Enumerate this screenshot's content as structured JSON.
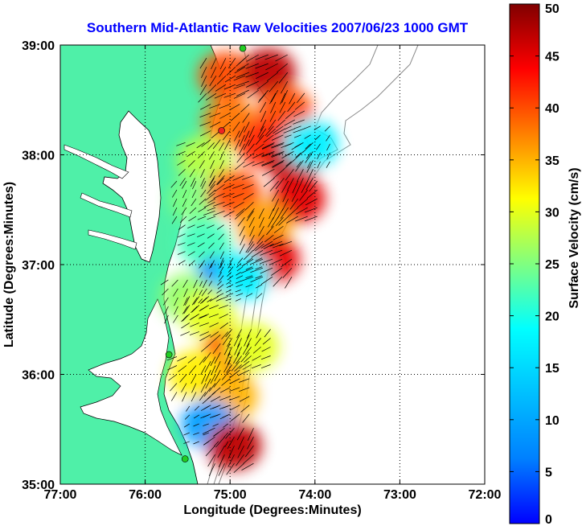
{
  "chart_data": {
    "type": "heatmap",
    "title": "Southern Mid-Atlantic Raw Velocities 2007/06/23 1000 GMT",
    "xlabel": "Longitude (Degrees:Minutes)",
    "ylabel": "Latitude (Degrees:Minutes)",
    "xlim": [
      -77,
      -72
    ],
    "ylim": [
      35,
      39
    ],
    "xticks": [
      -77,
      -76,
      -75,
      -74,
      -73,
      -72
    ],
    "xtick_labels": [
      "77:00",
      "76:00",
      "75:00",
      "74:00",
      "73:00",
      "72:00"
    ],
    "yticks": [
      35,
      36,
      37,
      38,
      39
    ],
    "ytick_labels": [
      "35:00",
      "36:00",
      "37:00",
      "38:00",
      "39:00"
    ],
    "grid": true,
    "colorbar": {
      "label": "Surface Velocity (cm/s)",
      "range": [
        0,
        50
      ],
      "ticks": [
        0,
        5,
        10,
        15,
        20,
        25,
        30,
        35,
        40,
        45,
        50
      ],
      "colormap": "jet"
    },
    "land_color": "#4ff0a8",
    "field_regions": [
      {
        "lon": -75.05,
        "lat": 38.72,
        "speed": 40
      },
      {
        "lon": -74.55,
        "lat": 38.75,
        "speed": 47
      },
      {
        "lon": -74.35,
        "lat": 38.4,
        "speed": 40
      },
      {
        "lon": -75.0,
        "lat": 38.3,
        "speed": 38
      },
      {
        "lon": -74.6,
        "lat": 38.1,
        "speed": 42
      },
      {
        "lon": -74.25,
        "lat": 37.95,
        "speed": 47
      },
      {
        "lon": -74.05,
        "lat": 38.1,
        "speed": 18
      },
      {
        "lon": -74.2,
        "lat": 37.6,
        "speed": 45
      },
      {
        "lon": -75.3,
        "lat": 37.95,
        "speed": 28
      },
      {
        "lon": -75.4,
        "lat": 37.6,
        "speed": 25
      },
      {
        "lon": -74.95,
        "lat": 37.65,
        "speed": 40
      },
      {
        "lon": -74.6,
        "lat": 37.35,
        "speed": 36
      },
      {
        "lon": -74.5,
        "lat": 37.05,
        "speed": 45
      },
      {
        "lon": -75.3,
        "lat": 37.2,
        "speed": 22
      },
      {
        "lon": -75.1,
        "lat": 36.85,
        "speed": 12
      },
      {
        "lon": -74.85,
        "lat": 36.9,
        "speed": 18
      },
      {
        "lon": -75.5,
        "lat": 36.7,
        "speed": 26
      },
      {
        "lon": -75.25,
        "lat": 36.55,
        "speed": 30
      },
      {
        "lon": -75.0,
        "lat": 36.2,
        "speed": 42
      },
      {
        "lon": -74.75,
        "lat": 36.25,
        "speed": 30
      },
      {
        "lon": -75.4,
        "lat": 36.0,
        "speed": 32
      },
      {
        "lon": -75.0,
        "lat": 35.8,
        "speed": 35
      },
      {
        "lon": -75.25,
        "lat": 35.55,
        "speed": 14
      },
      {
        "lon": -74.95,
        "lat": 35.35,
        "speed": 47
      }
    ],
    "stations": [
      {
        "lon": -74.85,
        "lat": 38.97,
        "color": "#22cc22"
      },
      {
        "lon": -75.1,
        "lat": 38.22,
        "color": "#ee2222"
      },
      {
        "lon": -75.72,
        "lat": 36.18,
        "color": "#22cc22"
      },
      {
        "lon": -75.53,
        "lat": 35.23,
        "color": "#22cc22"
      }
    ]
  }
}
